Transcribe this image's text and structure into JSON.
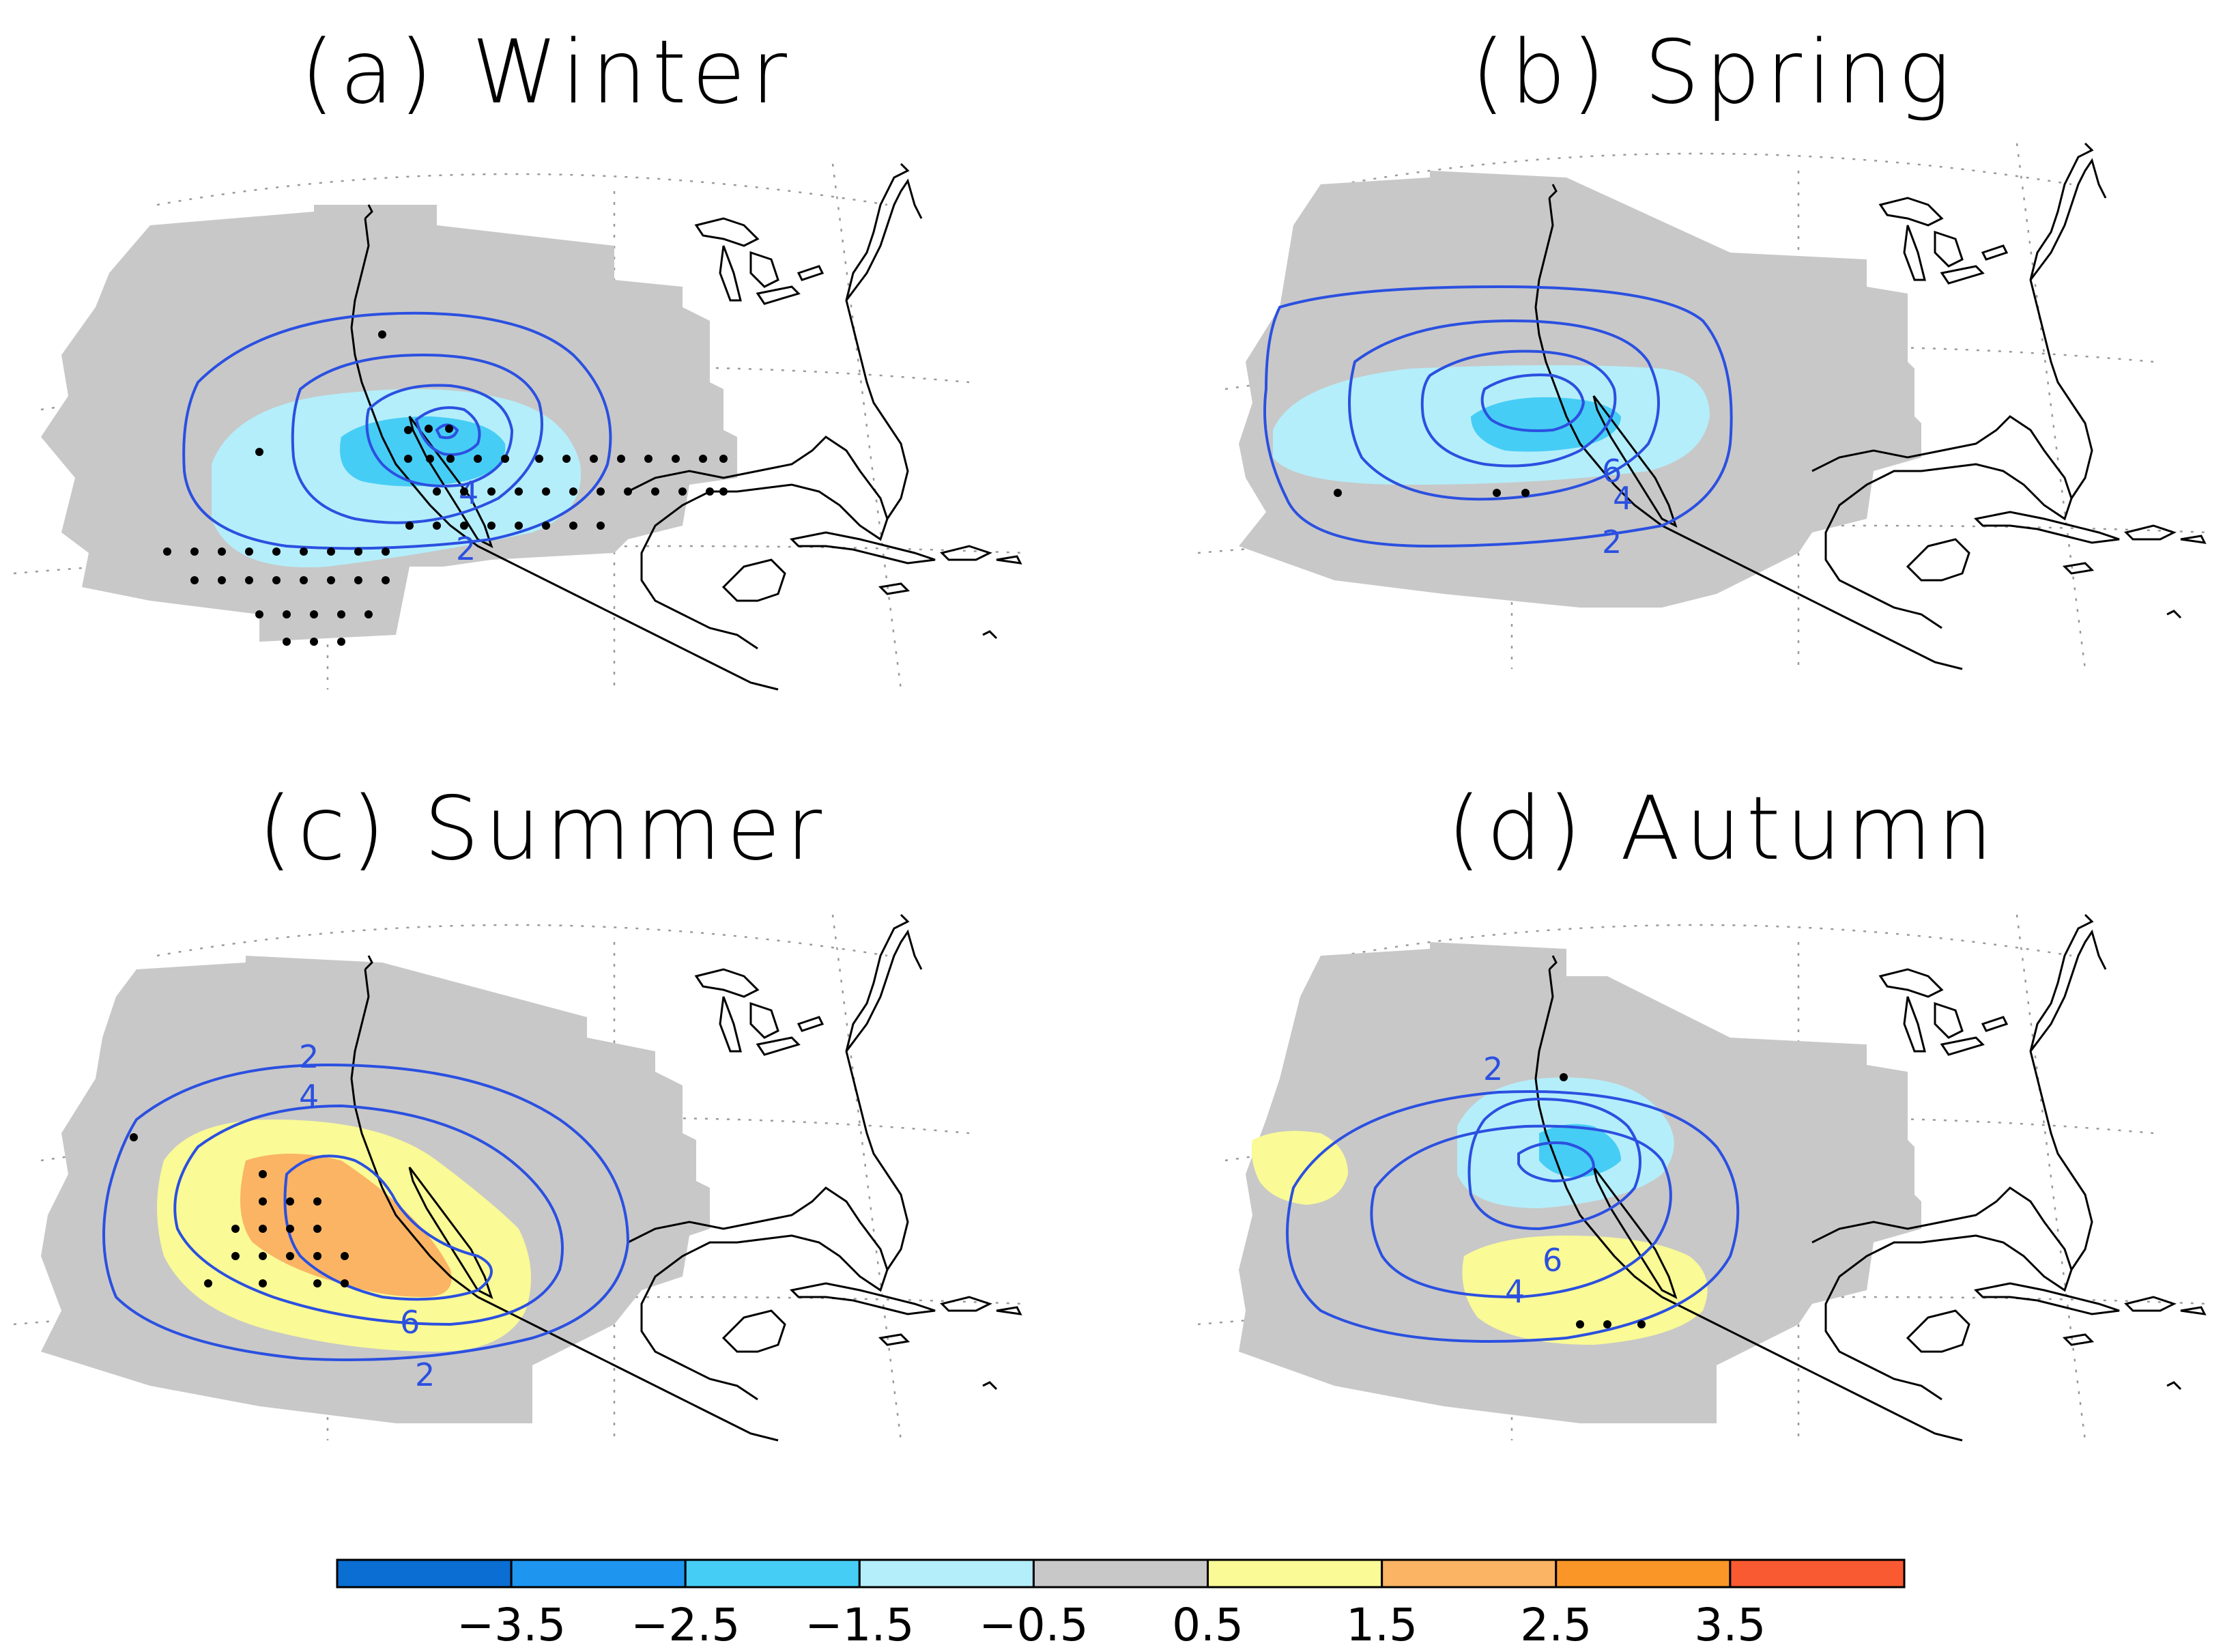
{
  "panels": [
    {
      "id": "a",
      "title": "(a)  Winter",
      "contour_labels": [
        "4",
        "2"
      ]
    },
    {
      "id": "b",
      "title": "(b)  Spring",
      "contour_labels": [
        "6",
        "4",
        "2"
      ]
    },
    {
      "id": "c",
      "title": "(c)  Summer",
      "contour_labels": [
        "2",
        "4",
        "6",
        "2"
      ]
    },
    {
      "id": "d",
      "title": "(d)  Autumn",
      "contour_labels": [
        "2",
        "6",
        "4"
      ]
    }
  ],
  "colorbar": {
    "colors": [
      "#0a6ed2",
      "#1e96f0",
      "#46cdf5",
      "#b4eefa",
      "#c8c8c8",
      "#fafa96",
      "#fab464",
      "#fa9628",
      "#fa5a32"
    ],
    "tick_labels": [
      "−3.5",
      "−2.5",
      "−1.5",
      "−0.5",
      "0.5",
      "1.5",
      "2.5",
      "3.5"
    ]
  },
  "styling": {
    "contour_color": "#2b50e0",
    "domain_color": "#c8c8c8",
    "coast_color": "#000000"
  }
}
